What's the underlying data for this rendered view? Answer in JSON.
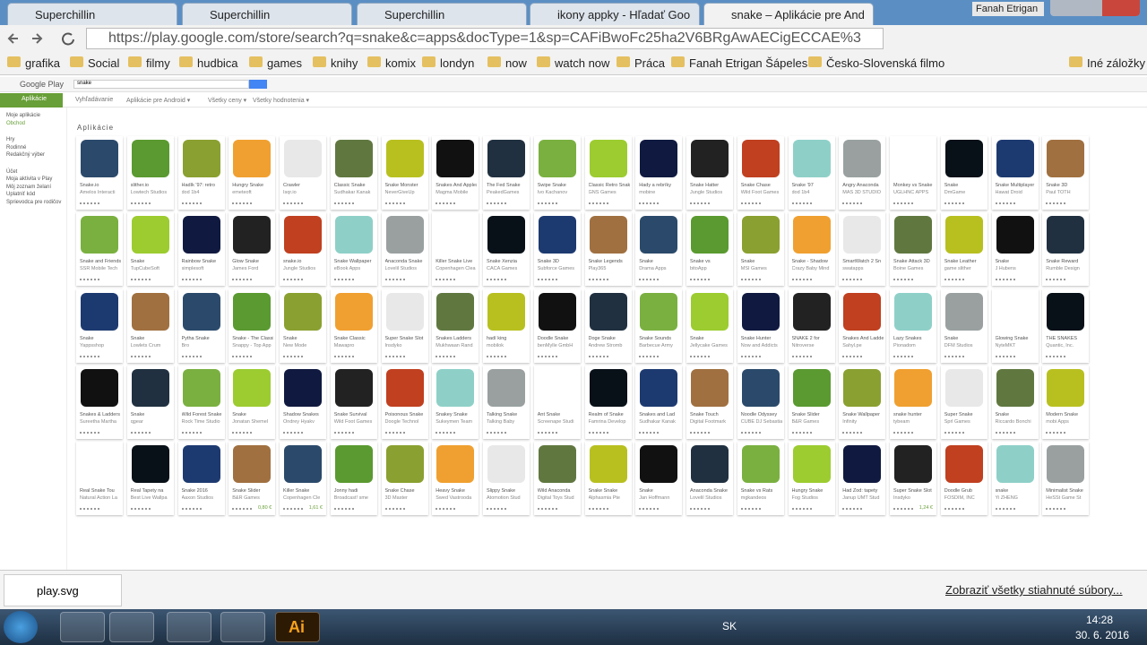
{
  "browser": {
    "tabs": [
      "Superchillin",
      "Superchillin",
      "Superchillin",
      "ikony appky - Hľadať Goo",
      "snake – Aplikácie pre And"
    ],
    "user": "Fanah Etrigan",
    "url": "https://play.google.com/store/search?q=snake&c=apps&docType=1&sp=CAFiBwoFc25ha2V6BRgAwAECigECCAE%3",
    "bookmarks": [
      "grafika",
      "Social",
      "filmy",
      "hudbica",
      "games",
      "knihy",
      "komix",
      "londyn",
      "now",
      "watch now",
      "Práca",
      "Fanah Etrigan Šápeles",
      "Česko-Slovenská filmo"
    ],
    "other_bookmarks": "Iné záložky"
  },
  "play": {
    "logo": "Google Play",
    "query": "snake",
    "nav": {
      "active": "Aplikácie",
      "items": [
        "Vyhľadávanie",
        "Aplikácie pre Android ▾",
        "Všetky ceny ▾",
        "Všetky hodnotenia ▾"
      ]
    },
    "sidebar": {
      "top": [
        "Moje aplikácie",
        "Obchod"
      ],
      "categories": [
        "Hry",
        "Rodinné",
        "Redakčný výber"
      ],
      "account": [
        "Účet",
        "Moja aktivita v Play",
        "Môj zoznam želaní",
        "Uplatniť kód",
        "Sprievodca pre rodičov"
      ]
    },
    "section": "Aplikácie",
    "apps": [
      {
        "title": "Snake.io",
        "developer": "Amelos Interacti"
      },
      {
        "title": "slither.io",
        "developer": "Lowtech Studios"
      },
      {
        "title": "Hadík '97: retro",
        "developer": "dod 1b4"
      },
      {
        "title": "Hungry Snake",
        "developer": "emeteoft"
      },
      {
        "title": "Crawler",
        "developer": "Isqr.io"
      },
      {
        "title": "Classic Snake",
        "developer": "Sudhakar Kanak"
      },
      {
        "title": "Snake Monster",
        "developer": "NeverGiveUp"
      },
      {
        "title": "Snakes And Apples",
        "developer": "Magma Mobile"
      },
      {
        "title": "The Fed Snake",
        "developer": "PeakedGames"
      },
      {
        "title": "Swipe Snake",
        "developer": "Ivo Kachanov"
      },
      {
        "title": "Classic Retro Snake",
        "developer": "GNS Games"
      },
      {
        "title": "Hady a rebríky",
        "developer": "mobine"
      },
      {
        "title": "Snake Hatter",
        "developer": "Jungle Studios"
      },
      {
        "title": "Snake Chase",
        "developer": "Wild Foot Games"
      },
      {
        "title": "Snake '97",
        "developer": "dod 1b4"
      },
      {
        "title": "Angry Anaconda",
        "developer": "MAS 3D STUDIO"
      },
      {
        "title": "Monkey vs Snake",
        "developer": "UGLHNC APPS"
      },
      {
        "title": "Snake",
        "developer": "DmGame"
      },
      {
        "title": "Snake Multiplayer",
        "developer": "Hawat Droid"
      },
      {
        "title": "Snake 3D",
        "developer": "Paul TOTH"
      },
      {
        "title": "Snake and Friends",
        "developer": "SSR Mobile Tech"
      },
      {
        "title": "Snake",
        "developer": "TupCubeSoft"
      },
      {
        "title": "Rainbow Snake",
        "developer": "simplesoft"
      },
      {
        "title": "Glow Snake",
        "developer": "James Ford"
      },
      {
        "title": "snake.io",
        "developer": "Jungle Studios"
      },
      {
        "title": "Snake Wallpaper",
        "developer": "eBook Apps"
      },
      {
        "title": "Anaconda Snake",
        "developer": "Lovelil Studios"
      },
      {
        "title": "Killer Snake Live",
        "developer": "Copenhagen Clea"
      },
      {
        "title": "Snake Xenzia",
        "developer": "CACA Games"
      },
      {
        "title": "Snake 3D",
        "developer": "Subforce Games"
      },
      {
        "title": "Snake Legends",
        "developer": "Play365"
      },
      {
        "title": "Snake",
        "developer": "Drama Apps"
      },
      {
        "title": "Snake vs",
        "developer": "bitoApp"
      },
      {
        "title": "Snake",
        "developer": "MSI Games"
      },
      {
        "title": "Snake - Shadow",
        "developer": "Crazy Baby Mind"
      },
      {
        "title": "SmartWatch 2 Sn",
        "developer": "swatapps"
      },
      {
        "title": "Snake Attack 3D",
        "developer": "Boine Games"
      },
      {
        "title": "Snake Leather",
        "developer": "game slither"
      },
      {
        "title": "Snake",
        "developer": "J Hubens"
      },
      {
        "title": "Snake Reward",
        "developer": "Rumble Design"
      },
      {
        "title": "Snake",
        "developer": "Yappsshop"
      },
      {
        "title": "Snake",
        "developer": "Lowlets Crum"
      },
      {
        "title": "Pytha Snake",
        "developer": "Bro"
      },
      {
        "title": "Snake - The Classic",
        "developer": "Snappy - Top App"
      },
      {
        "title": "Snake",
        "developer": "New Mode"
      },
      {
        "title": "Snake Classic",
        "developer": "Mawapro"
      },
      {
        "title": "Super Snake Slot",
        "developer": "Insdyko"
      },
      {
        "title": "Snakes Ladders",
        "developer": "Mukhwaan Rand"
      },
      {
        "title": "hadí king",
        "developer": "mobilok"
      },
      {
        "title": "Doodle Snake",
        "developer": "benMylle GmbH"
      },
      {
        "title": "Doge Snake",
        "developer": "Andrew Stromb"
      },
      {
        "title": "Snake Sounds",
        "developer": "Barbecue Army"
      },
      {
        "title": "Snake",
        "developer": "Jellycake Games"
      },
      {
        "title": "Snake Hunter",
        "developer": "Now and Addicts"
      },
      {
        "title": "SNAKE 2 for",
        "developer": "Nitroverse"
      },
      {
        "title": "Snakes And Ladders",
        "developer": "Sahyl.pe"
      },
      {
        "title": "Lazy Snakes",
        "developer": "Pionadom"
      },
      {
        "title": "Snake",
        "developer": "DFM Studios"
      },
      {
        "title": "Glowing Snake",
        "developer": "NyteMKT"
      },
      {
        "title": "THE SNAKES",
        "developer": "Quantic, Inc."
      },
      {
        "title": "Snakes & Ladders",
        "developer": "Sureetha Martha"
      },
      {
        "title": "Snake",
        "developer": "qgear"
      },
      {
        "title": "Wild Forest Snake",
        "developer": "Rock Time Studio"
      },
      {
        "title": "Snake",
        "developer": "Jonatan Shemel"
      },
      {
        "title": "Shadow Snakes",
        "developer": "Ondrey Hyakv"
      },
      {
        "title": "Snake Survival",
        "developer": "Wild Foot Games"
      },
      {
        "title": "Poisonous Snake",
        "developer": "Doogle Technol"
      },
      {
        "title": "Snakey Snake",
        "developer": "Sukeymen Team"
      },
      {
        "title": "Talking Snake",
        "developer": "Talking Baby"
      },
      {
        "title": "Ant Snake",
        "developer": "Screenape Studi"
      },
      {
        "title": "Realm of Snake",
        "developer": "Famrina Develop"
      },
      {
        "title": "Snakes and Lad",
        "developer": "Sudhakar Kanak"
      },
      {
        "title": "Snake Touch",
        "developer": "Digital Footmark"
      },
      {
        "title": "Noodle Odyssey",
        "developer": "CUBE DJ Sebastia"
      },
      {
        "title": "Snake Slider",
        "developer": "B&R Games"
      },
      {
        "title": "Snake Wallpaper",
        "developer": "Infinity"
      },
      {
        "title": "snake hunter",
        "developer": "tybeam"
      },
      {
        "title": "Super Snake",
        "developer": "Sprl Games"
      },
      {
        "title": "Snake",
        "developer": "Riccardo Bonchi"
      },
      {
        "title": "Modern Snake",
        "developer": "mobi Apps"
      },
      {
        "title": "Real Snake Tou",
        "developer": "Natural Action La"
      },
      {
        "title": "Real Tapety na",
        "developer": "Best Live Wallpa"
      },
      {
        "title": "Snake 2016",
        "developer": "Aaxon Studios"
      },
      {
        "title": "Snake Slider",
        "developer": "B&R Games",
        "price": "0,80 €"
      },
      {
        "title": "Killer Snake",
        "developer": "Copenhagen Cle",
        "price": "1,61 €"
      },
      {
        "title": "Jonny hadi",
        "developer": "Broadcast! sme"
      },
      {
        "title": "Snake Chase",
        "developer": "3D Master"
      },
      {
        "title": "Heavy Snake",
        "developer": "Swed Vastrooda"
      },
      {
        "title": "Slippy Snake",
        "developer": "Atomotion Stud"
      },
      {
        "title": "Wild Anaconda",
        "developer": "Digital Toys Stud"
      },
      {
        "title": "Snake Snake",
        "developer": "Alphasmia Pte"
      },
      {
        "title": "Snake",
        "developer": "Jan Hoffmann"
      },
      {
        "title": "Anaconda Snake",
        "developer": "Lovelil Studios"
      },
      {
        "title": "Snake vs Rats",
        "developer": "mgkandeos"
      },
      {
        "title": "Hungry Snake",
        "developer": "Fog Studios"
      },
      {
        "title": "Had Zod: tapety",
        "developer": "Janup UMT Stud"
      },
      {
        "title": "Super Snake Slot",
        "developer": "Insdyko",
        "price": "1,24 €"
      },
      {
        "title": "Doodle Grub",
        "developer": "FOSDIM, INC"
      },
      {
        "title": "snake",
        "developer": "Yi ZHENG"
      },
      {
        "title": "Minimalist Snake",
        "developer": "HeSSt Game St"
      }
    ]
  },
  "downloads": {
    "file": "play.svg",
    "show_all": "Zobraziť všetky stiahnuté súbory..."
  },
  "taskbar": {
    "lang": "SK",
    "time": "14:28",
    "date": "30. 6. 2016",
    "illustrator": "Ai"
  }
}
